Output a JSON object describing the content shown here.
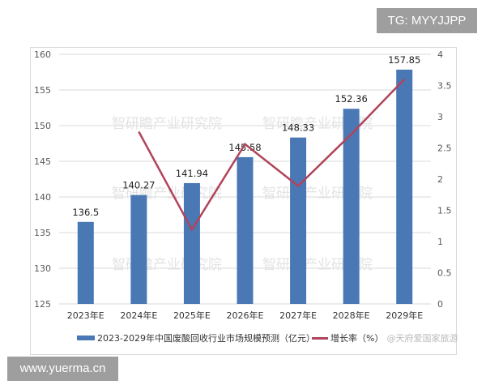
{
  "badges": {
    "tg": "TG: MYYJJPP",
    "site": "www.yuerma.cn"
  },
  "watermark": "智研瞻产业研究院",
  "legend": {
    "bar_label": "2023-2029年中国废酸回收行业市场规模预测（亿元）",
    "line_label": "增长率（%）",
    "overlay_text": "@天府爱国家旅游"
  },
  "colors": {
    "bar": "#4a78b5",
    "line": "#b0445a",
    "grid": "#d9d9d9",
    "axis_text": "#595959"
  },
  "chart_data": {
    "type": "bar",
    "title": "",
    "categories": [
      "2023年E",
      "2024年E",
      "2025年E",
      "2026年E",
      "2027年E",
      "2028年E",
      "2029年E"
    ],
    "series": [
      {
        "name": "2023-2029年中国废酸回收行业市场规模预测（亿元）",
        "type": "bar",
        "axis": "left",
        "values": [
          136.5,
          140.27,
          141.94,
          145.58,
          148.33,
          152.36,
          157.85
        ],
        "labels": [
          "136.5",
          "140.27",
          "141.94",
          "145.58",
          "148.33",
          "152.36",
          "157.85"
        ]
      },
      {
        "name": "增长率（%）",
        "type": "line",
        "axis": "right",
        "values": [
          null,
          2.76,
          1.19,
          2.56,
          1.89,
          2.72,
          3.6
        ]
      }
    ],
    "left_axis": {
      "min": 125,
      "max": 160,
      "step": 5,
      "ticks": [
        "160",
        "155",
        "150",
        "145",
        "140",
        "135",
        "130",
        "125"
      ]
    },
    "right_axis": {
      "min": 0,
      "max": 4,
      "step": 0.5,
      "ticks": [
        "4",
        "3.5",
        "3",
        "2.5",
        "2",
        "1.5",
        "1",
        "0.5",
        "0"
      ]
    },
    "xlabel": "",
    "ylabel": "",
    "grid": true,
    "legend_position": "bottom"
  }
}
